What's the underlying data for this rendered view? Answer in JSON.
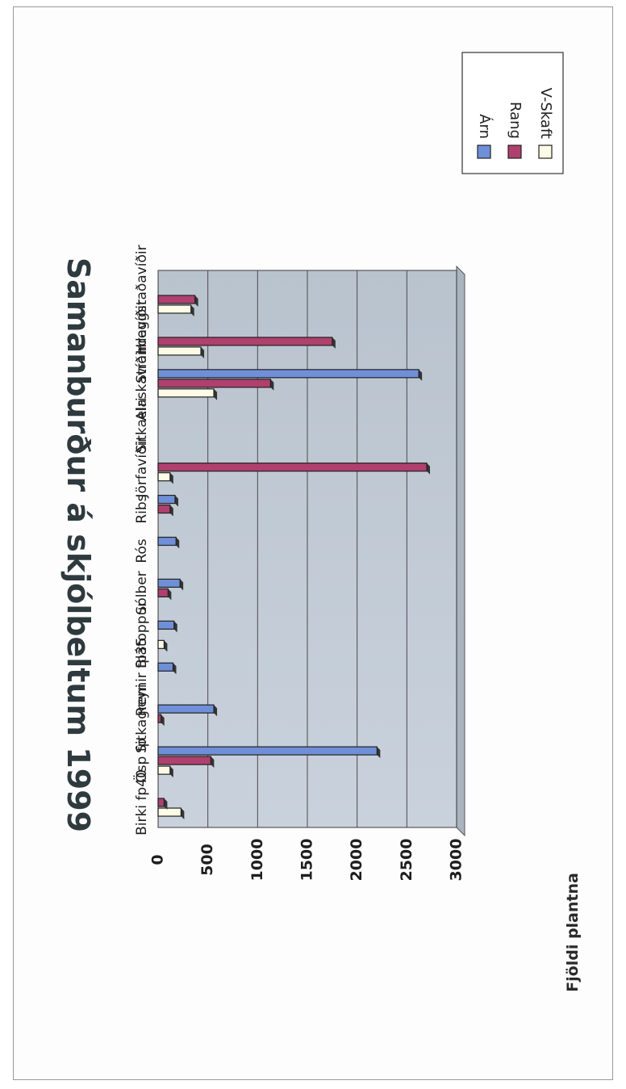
{
  "chart_data": {
    "type": "bar",
    "title": "Samanburður á skjólbeltum 1999",
    "ylabel": "Fjöldi plantna",
    "ylim": [
      0,
      3000
    ],
    "yticks": [
      "0",
      "500",
      "1000",
      "1500",
      "2000",
      "2500",
      "3000"
    ],
    "grid": true,
    "legend": "top-right",
    "categories": [
      "Hreggstaðavíðir",
      "Strandavíðir",
      "Alaskavíðir",
      "Sitkaelri",
      "Jörfavíðir",
      "Ribs",
      "Rós",
      "Sólber",
      "Blátoppur",
      "Reynir fp35",
      "Sitkagreni",
      "Ösp fp",
      "Birki fp40"
    ],
    "series": [
      {
        "name": "V-Skaft",
        "color": "#fdfbe6",
        "values": [
          330,
          430,
          560,
          0,
          120,
          0,
          0,
          0,
          60,
          0,
          0,
          120,
          230
        ]
      },
      {
        "name": "Rang",
        "color": "#b0406e",
        "values": [
          370,
          1750,
          1130,
          0,
          2700,
          120,
          0,
          100,
          0,
          0,
          30,
          530,
          60
        ]
      },
      {
        "name": "Árn",
        "color": "#6f8fd8",
        "values": [
          0,
          0,
          2620,
          0,
          0,
          170,
          180,
          220,
          160,
          150,
          560,
          2200,
          0
        ]
      }
    ]
  }
}
